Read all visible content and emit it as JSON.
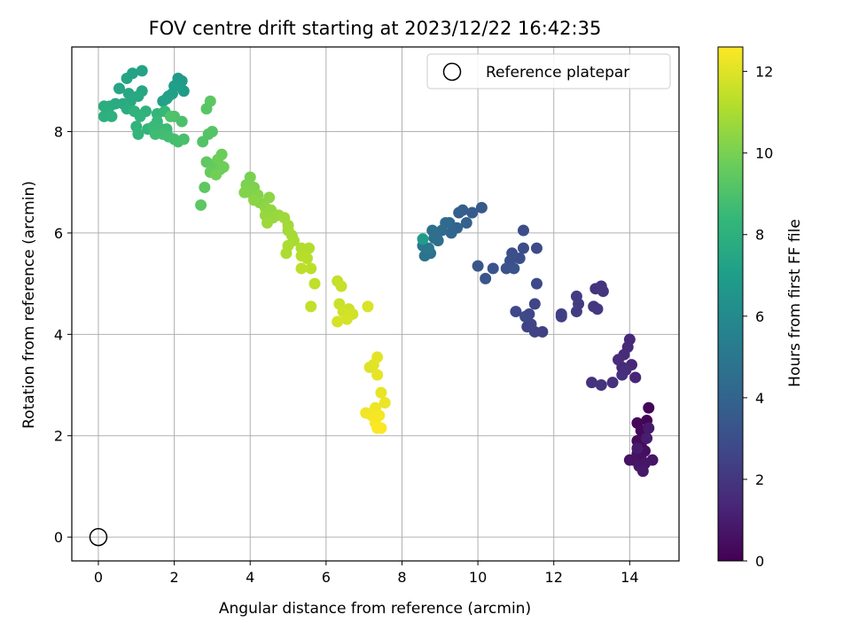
{
  "chart_data": {
    "type": "scatter",
    "title": "FOV centre drift starting at 2023/12/22 16:42:35",
    "xlabel": "Angular distance from reference (arcmin)",
    "ylabel": "Rotation from reference (arcmin)",
    "xlim": [
      -0.7,
      15.3
    ],
    "ylim": [
      -0.47,
      9.67
    ],
    "xticks": [
      0,
      2,
      4,
      6,
      8,
      10,
      12,
      14
    ],
    "yticks": [
      0,
      2,
      4,
      6,
      8
    ],
    "grid": true,
    "legend": {
      "placement": "top-right",
      "entries": [
        "Reference platepar"
      ]
    },
    "reference_point": {
      "x": 0,
      "y": 0,
      "label": "Reference platepar"
    },
    "colorbar": {
      "label": "Hours from first FF file",
      "colormap": "viridis",
      "range": [
        0,
        12.6
      ],
      "ticks": [
        0,
        2,
        4,
        6,
        8,
        10,
        12
      ]
    },
    "points": [
      {
        "x": 14.5,
        "y": 2.55,
        "c": 0.1
      },
      {
        "x": 14.45,
        "y": 2.3,
        "c": 0.15
      },
      {
        "x": 14.2,
        "y": 2.25,
        "c": 0.2
      },
      {
        "x": 14.3,
        "y": 2.1,
        "c": 0.25
      },
      {
        "x": 14.4,
        "y": 2.0,
        "c": 0.3
      },
      {
        "x": 14.2,
        "y": 1.9,
        "c": 0.35
      },
      {
        "x": 14.3,
        "y": 1.8,
        "c": 0.4
      },
      {
        "x": 14.4,
        "y": 1.7,
        "c": 0.45
      },
      {
        "x": 14.2,
        "y": 1.65,
        "c": 0.5
      },
      {
        "x": 14.3,
        "y": 1.55,
        "c": 0.55
      },
      {
        "x": 14.0,
        "y": 1.52,
        "c": 0.6
      },
      {
        "x": 14.1,
        "y": 1.52,
        "c": 0.65
      },
      {
        "x": 14.6,
        "y": 1.52,
        "c": 0.7
      },
      {
        "x": 14.4,
        "y": 1.45,
        "c": 0.75
      },
      {
        "x": 14.25,
        "y": 1.4,
        "c": 0.8
      },
      {
        "x": 14.35,
        "y": 1.3,
        "c": 0.85
      },
      {
        "x": 14.5,
        "y": 2.15,
        "c": 0.9
      },
      {
        "x": 14.2,
        "y": 1.75,
        "c": 0.95
      },
      {
        "x": 14.45,
        "y": 1.95,
        "c": 1.0
      },
      {
        "x": 14.15,
        "y": 3.15,
        "c": 1.3
      },
      {
        "x": 14.05,
        "y": 3.4,
        "c": 1.35
      },
      {
        "x": 13.8,
        "y": 3.35,
        "c": 1.4
      },
      {
        "x": 14.0,
        "y": 3.9,
        "c": 1.45
      },
      {
        "x": 13.95,
        "y": 3.75,
        "c": 1.5
      },
      {
        "x": 13.85,
        "y": 3.6,
        "c": 1.55
      },
      {
        "x": 13.7,
        "y": 3.5,
        "c": 1.6
      },
      {
        "x": 13.9,
        "y": 3.3,
        "c": 1.65
      },
      {
        "x": 13.8,
        "y": 3.2,
        "c": 1.7
      },
      {
        "x": 13.55,
        "y": 3.05,
        "c": 1.75
      },
      {
        "x": 13.0,
        "y": 3.05,
        "c": 1.8
      },
      {
        "x": 13.25,
        "y": 3.0,
        "c": 1.85
      },
      {
        "x": 13.1,
        "y": 4.9,
        "c": 1.9
      },
      {
        "x": 13.25,
        "y": 4.95,
        "c": 1.95
      },
      {
        "x": 13.3,
        "y": 4.85,
        "c": 2.0
      },
      {
        "x": 13.05,
        "y": 4.55,
        "c": 2.05
      },
      {
        "x": 13.15,
        "y": 4.5,
        "c": 2.1
      },
      {
        "x": 12.6,
        "y": 4.75,
        "c": 2.15
      },
      {
        "x": 12.65,
        "y": 4.6,
        "c": 2.2
      },
      {
        "x": 12.6,
        "y": 4.45,
        "c": 2.25
      },
      {
        "x": 12.2,
        "y": 4.4,
        "c": 2.3
      },
      {
        "x": 12.2,
        "y": 4.35,
        "c": 2.35
      },
      {
        "x": 11.7,
        "y": 4.05,
        "c": 2.4
      },
      {
        "x": 11.5,
        "y": 4.05,
        "c": 2.45
      },
      {
        "x": 11.3,
        "y": 4.15,
        "c": 2.5
      },
      {
        "x": 11.4,
        "y": 4.2,
        "c": 2.55
      },
      {
        "x": 11.5,
        "y": 4.6,
        "c": 2.6
      },
      {
        "x": 11.35,
        "y": 4.4,
        "c": 2.65
      },
      {
        "x": 11.0,
        "y": 4.45,
        "c": 2.7
      },
      {
        "x": 11.25,
        "y": 4.35,
        "c": 2.75
      },
      {
        "x": 11.55,
        "y": 5.0,
        "c": 2.8
      },
      {
        "x": 11.55,
        "y": 5.7,
        "c": 2.85
      },
      {
        "x": 11.2,
        "y": 5.7,
        "c": 2.9
      },
      {
        "x": 11.2,
        "y": 6.05,
        "c": 2.95
      },
      {
        "x": 11.1,
        "y": 5.5,
        "c": 3.0
      },
      {
        "x": 10.9,
        "y": 5.6,
        "c": 3.05
      },
      {
        "x": 10.85,
        "y": 5.45,
        "c": 3.1
      },
      {
        "x": 10.75,
        "y": 5.3,
        "c": 3.15
      },
      {
        "x": 10.95,
        "y": 5.3,
        "c": 3.2
      },
      {
        "x": 10.4,
        "y": 5.3,
        "c": 3.25
      },
      {
        "x": 10.2,
        "y": 5.1,
        "c": 3.3
      },
      {
        "x": 10.0,
        "y": 5.35,
        "c": 3.35
      },
      {
        "x": 10.1,
        "y": 6.5,
        "c": 3.5
      },
      {
        "x": 9.85,
        "y": 6.4,
        "c": 3.6
      },
      {
        "x": 9.6,
        "y": 6.45,
        "c": 3.7
      },
      {
        "x": 9.5,
        "y": 6.4,
        "c": 3.8
      },
      {
        "x": 9.7,
        "y": 6.2,
        "c": 3.9
      },
      {
        "x": 9.45,
        "y": 6.1,
        "c": 4.0
      },
      {
        "x": 9.3,
        "y": 6.0,
        "c": 4.1
      },
      {
        "x": 9.25,
        "y": 6.2,
        "c": 4.2
      },
      {
        "x": 9.15,
        "y": 6.2,
        "c": 4.3
      },
      {
        "x": 9.05,
        "y": 6.05,
        "c": 4.4
      },
      {
        "x": 8.95,
        "y": 5.85,
        "c": 4.5
      },
      {
        "x": 8.85,
        "y": 5.9,
        "c": 4.55
      },
      {
        "x": 8.8,
        "y": 6.05,
        "c": 4.6
      },
      {
        "x": 8.75,
        "y": 5.6,
        "c": 4.7
      },
      {
        "x": 8.6,
        "y": 5.55,
        "c": 4.8
      },
      {
        "x": 8.55,
        "y": 5.75,
        "c": 4.9
      },
      {
        "x": 8.7,
        "y": 5.7,
        "c": 5.0
      },
      {
        "x": 8.55,
        "y": 5.88,
        "c": 6.9
      },
      {
        "x": 2.1,
        "y": 9.05,
        "c": 6.8
      },
      {
        "x": 2.2,
        "y": 9.0,
        "c": 6.85
      },
      {
        "x": 2.15,
        "y": 8.9,
        "c": 6.9
      },
      {
        "x": 2.25,
        "y": 8.8,
        "c": 6.95
      },
      {
        "x": 2.0,
        "y": 8.9,
        "c": 7.0
      },
      {
        "x": 1.95,
        "y": 8.75,
        "c": 7.05
      },
      {
        "x": 1.85,
        "y": 8.7,
        "c": 7.1
      },
      {
        "x": 1.7,
        "y": 8.6,
        "c": 7.15
      },
      {
        "x": 1.8,
        "y": 8.65,
        "c": 7.2
      },
      {
        "x": 1.15,
        "y": 9.2,
        "c": 7.25
      },
      {
        "x": 0.9,
        "y": 9.15,
        "c": 7.3
      },
      {
        "x": 0.75,
        "y": 9.05,
        "c": 7.35
      },
      {
        "x": 0.55,
        "y": 8.85,
        "c": 7.4
      },
      {
        "x": 1.15,
        "y": 8.8,
        "c": 7.45
      },
      {
        "x": 0.8,
        "y": 8.75,
        "c": 7.5
      },
      {
        "x": 1.05,
        "y": 8.7,
        "c": 7.55
      },
      {
        "x": 0.85,
        "y": 8.6,
        "c": 7.6
      },
      {
        "x": 0.65,
        "y": 8.55,
        "c": 7.65
      },
      {
        "x": 0.45,
        "y": 8.55,
        "c": 7.7
      },
      {
        "x": 0.3,
        "y": 8.5,
        "c": 7.75
      },
      {
        "x": 0.15,
        "y": 8.5,
        "c": 7.8
      },
      {
        "x": 0.75,
        "y": 8.45,
        "c": 7.85
      },
      {
        "x": 0.25,
        "y": 8.4,
        "c": 7.9
      },
      {
        "x": 0.15,
        "y": 8.3,
        "c": 7.95
      },
      {
        "x": 0.35,
        "y": 8.3,
        "c": 8.0
      },
      {
        "x": 0.95,
        "y": 8.4,
        "c": 8.05
      },
      {
        "x": 1.25,
        "y": 8.4,
        "c": 8.1
      },
      {
        "x": 1.1,
        "y": 8.3,
        "c": 8.15
      },
      {
        "x": 1.0,
        "y": 8.1,
        "c": 8.2
      },
      {
        "x": 1.05,
        "y": 7.95,
        "c": 8.25
      },
      {
        "x": 1.3,
        "y": 8.05,
        "c": 8.3
      },
      {
        "x": 1.55,
        "y": 8.35,
        "c": 8.35
      },
      {
        "x": 1.75,
        "y": 8.4,
        "c": 8.4
      },
      {
        "x": 1.55,
        "y": 8.2,
        "c": 8.45
      },
      {
        "x": 1.45,
        "y": 8.1,
        "c": 8.5
      },
      {
        "x": 1.65,
        "y": 8.05,
        "c": 8.55
      },
      {
        "x": 1.8,
        "y": 8.05,
        "c": 8.6
      },
      {
        "x": 1.5,
        "y": 7.95,
        "c": 8.65
      },
      {
        "x": 1.7,
        "y": 7.95,
        "c": 8.7
      },
      {
        "x": 1.85,
        "y": 7.9,
        "c": 8.75
      },
      {
        "x": 2.0,
        "y": 7.85,
        "c": 8.8
      },
      {
        "x": 2.1,
        "y": 7.8,
        "c": 8.85
      },
      {
        "x": 2.25,
        "y": 7.85,
        "c": 8.9
      },
      {
        "x": 2.2,
        "y": 8.2,
        "c": 8.95
      },
      {
        "x": 2.0,
        "y": 8.3,
        "c": 9.0
      },
      {
        "x": 1.9,
        "y": 8.3,
        "c": 9.05
      },
      {
        "x": 2.75,
        "y": 7.8,
        "c": 9.1
      },
      {
        "x": 2.9,
        "y": 7.95,
        "c": 9.15
      },
      {
        "x": 3.0,
        "y": 8.0,
        "c": 9.2
      },
      {
        "x": 2.85,
        "y": 8.45,
        "c": 9.25
      },
      {
        "x": 2.95,
        "y": 8.6,
        "c": 9.3
      },
      {
        "x": 2.7,
        "y": 6.55,
        "c": 9.35
      },
      {
        "x": 2.8,
        "y": 6.9,
        "c": 9.4
      },
      {
        "x": 2.85,
        "y": 7.4,
        "c": 9.45
      },
      {
        "x": 3.0,
        "y": 7.35,
        "c": 9.5
      },
      {
        "x": 3.1,
        "y": 7.3,
        "c": 9.55
      },
      {
        "x": 2.95,
        "y": 7.2,
        "c": 9.6
      },
      {
        "x": 3.2,
        "y": 7.25,
        "c": 9.65
      },
      {
        "x": 3.25,
        "y": 7.55,
        "c": 9.7
      },
      {
        "x": 3.15,
        "y": 7.45,
        "c": 9.75
      },
      {
        "x": 3.3,
        "y": 7.3,
        "c": 9.8
      },
      {
        "x": 3.1,
        "y": 7.15,
        "c": 9.85
      },
      {
        "x": 4.0,
        "y": 7.1,
        "c": 10.0
      },
      {
        "x": 3.9,
        "y": 6.95,
        "c": 10.05
      },
      {
        "x": 4.1,
        "y": 6.9,
        "c": 10.1
      },
      {
        "x": 4.0,
        "y": 6.8,
        "c": 10.15
      },
      {
        "x": 3.85,
        "y": 6.8,
        "c": 10.2
      },
      {
        "x": 4.2,
        "y": 6.75,
        "c": 10.25
      },
      {
        "x": 4.25,
        "y": 6.6,
        "c": 10.3
      },
      {
        "x": 4.1,
        "y": 6.65,
        "c": 10.35
      },
      {
        "x": 4.5,
        "y": 6.7,
        "c": 10.4
      },
      {
        "x": 4.4,
        "y": 6.5,
        "c": 10.45
      },
      {
        "x": 4.55,
        "y": 6.45,
        "c": 10.5
      },
      {
        "x": 4.6,
        "y": 6.3,
        "c": 10.55
      },
      {
        "x": 4.4,
        "y": 6.35,
        "c": 10.6
      },
      {
        "x": 4.75,
        "y": 6.35,
        "c": 10.65
      },
      {
        "x": 4.45,
        "y": 6.2,
        "c": 10.7
      },
      {
        "x": 4.9,
        "y": 6.3,
        "c": 10.75
      },
      {
        "x": 5.0,
        "y": 6.15,
        "c": 10.8
      },
      {
        "x": 5.0,
        "y": 6.05,
        "c": 10.85
      },
      {
        "x": 5.1,
        "y": 5.95,
        "c": 10.9
      },
      {
        "x": 5.15,
        "y": 5.85,
        "c": 10.95
      },
      {
        "x": 5.0,
        "y": 5.75,
        "c": 11.0
      },
      {
        "x": 4.95,
        "y": 5.6,
        "c": 11.05
      },
      {
        "x": 5.35,
        "y": 5.7,
        "c": 11.1
      },
      {
        "x": 5.55,
        "y": 5.7,
        "c": 11.15
      },
      {
        "x": 5.35,
        "y": 5.55,
        "c": 11.2
      },
      {
        "x": 5.5,
        "y": 5.5,
        "c": 11.25
      },
      {
        "x": 5.6,
        "y": 5.3,
        "c": 11.3
      },
      {
        "x": 5.35,
        "y": 5.3,
        "c": 11.35
      },
      {
        "x": 5.7,
        "y": 5.0,
        "c": 11.4
      },
      {
        "x": 5.6,
        "y": 4.55,
        "c": 11.45
      },
      {
        "x": 6.3,
        "y": 5.05,
        "c": 11.5
      },
      {
        "x": 6.4,
        "y": 4.95,
        "c": 11.55
      },
      {
        "x": 6.35,
        "y": 4.6,
        "c": 11.6
      },
      {
        "x": 6.6,
        "y": 4.5,
        "c": 11.65
      },
      {
        "x": 6.45,
        "y": 4.45,
        "c": 11.7
      },
      {
        "x": 6.7,
        "y": 4.4,
        "c": 11.75
      },
      {
        "x": 6.55,
        "y": 4.3,
        "c": 11.8
      },
      {
        "x": 6.3,
        "y": 4.25,
        "c": 11.85
      },
      {
        "x": 7.1,
        "y": 4.55,
        "c": 11.9
      },
      {
        "x": 7.15,
        "y": 3.35,
        "c": 12.0
      },
      {
        "x": 7.25,
        "y": 3.4,
        "c": 12.05
      },
      {
        "x": 7.35,
        "y": 3.55,
        "c": 12.1
      },
      {
        "x": 7.35,
        "y": 3.2,
        "c": 12.15
      },
      {
        "x": 7.45,
        "y": 2.85,
        "c": 12.2
      },
      {
        "x": 7.55,
        "y": 2.65,
        "c": 12.25
      },
      {
        "x": 7.3,
        "y": 2.55,
        "c": 12.3
      },
      {
        "x": 7.05,
        "y": 2.45,
        "c": 12.35
      },
      {
        "x": 7.2,
        "y": 2.4,
        "c": 12.4
      },
      {
        "x": 7.4,
        "y": 2.4,
        "c": 12.45
      },
      {
        "x": 7.3,
        "y": 2.25,
        "c": 12.5
      },
      {
        "x": 7.45,
        "y": 2.15,
        "c": 12.55
      },
      {
        "x": 7.35,
        "y": 2.15,
        "c": 12.6
      }
    ]
  }
}
